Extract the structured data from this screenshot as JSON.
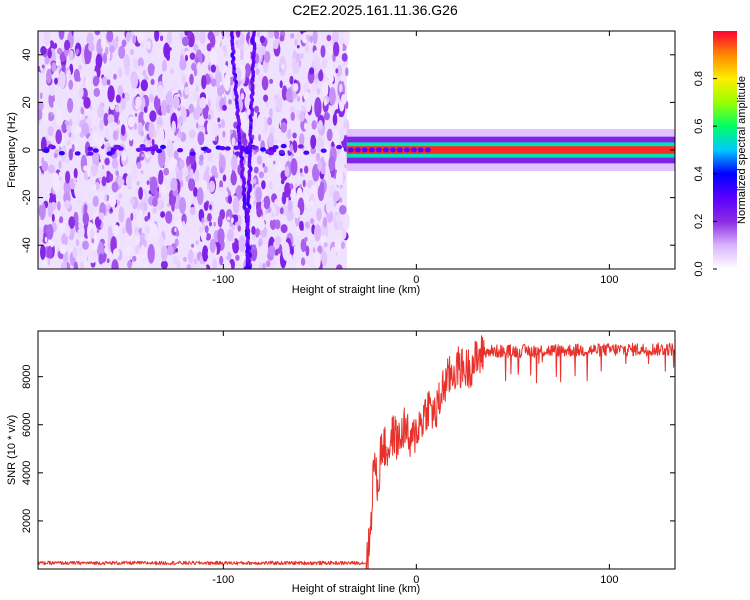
{
  "title": "C2E2.2025.161.11.36.G26",
  "charts": [
    {
      "type": "heatmap",
      "xlabel": "Height of straight line (km)",
      "ylabel": "Frequency (Hz)",
      "xlim": [
        -196,
        134
      ],
      "ylim": [
        -50,
        50
      ],
      "xticks": [
        -100,
        0,
        100
      ],
      "yticks": [
        -40,
        -20,
        0,
        20,
        40
      ],
      "noise_region_x": [
        -196,
        -36
      ],
      "signal_band": {
        "x_start": -36,
        "x_end": 134,
        "frequency_center": 0,
        "frequency_halfwidth": 4
      },
      "interference_tracks": [
        {
          "x_top": -96,
          "x_bottom": -86
        },
        {
          "x_top": -84,
          "x_bottom": -88
        }
      ],
      "colorbar": {
        "label": "Normalized spectral amplitude",
        "range": [
          0,
          1
        ],
        "ticks": [
          "0.0",
          "0.2",
          "0.4",
          "0.6",
          "0.8"
        ],
        "colormap": [
          "#ffffff",
          "#d9b3ff",
          "#8b2be2",
          "#5a00ff",
          "#0000ff",
          "#00c8ff",
          "#00ff66",
          "#99ff00",
          "#ffee00",
          "#ff8800",
          "#ff0033"
        ]
      }
    },
    {
      "type": "line",
      "xlabel": "Height of straight line (km)",
      "ylabel": "SNR (10 * v/v)",
      "xlim": [
        -196,
        134
      ],
      "ylim": [
        0,
        9900
      ],
      "xticks": [
        -100,
        0,
        100
      ],
      "yticks": [
        2000,
        4000,
        6000,
        8000
      ],
      "color": "#e8312a",
      "segments": [
        {
          "x": [
            -196,
            -26
          ],
          "y": [
            250,
            250
          ]
        },
        {
          "x": [
            -26,
            -24,
            -22,
            -20,
            -18,
            -15,
            -12,
            -9,
            -6,
            -3,
            0,
            3,
            6,
            10,
            14,
            18,
            22,
            26,
            30,
            35
          ],
          "y": [
            250,
            1200,
            4600,
            3300,
            5200,
            4900,
            5600,
            5300,
            6000,
            5100,
            5800,
            6200,
            6800,
            6400,
            7600,
            8100,
            8400,
            8300,
            8600,
            9000
          ]
        },
        {
          "x": [
            35,
            134
          ],
          "y": [
            9050,
            9150
          ]
        }
      ],
      "noise_amplitude": [
        150,
        1800,
        550
      ]
    }
  ]
}
